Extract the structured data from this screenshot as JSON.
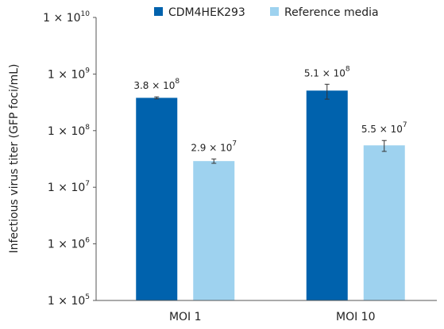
{
  "chart_data": {
    "type": "bar",
    "ylabel": "Infectious virus titer (GFP foci/mL)",
    "yscale": "log",
    "ylim": [
      100000,
      10000000000
    ],
    "yticks": [
      {
        "mantissa": "1",
        "exp": "5"
      },
      {
        "mantissa": "1",
        "exp": "6"
      },
      {
        "mantissa": "1",
        "exp": "7"
      },
      {
        "mantissa": "1",
        "exp": "8"
      },
      {
        "mantissa": "1",
        "exp": "9"
      },
      {
        "mantissa": "1",
        "exp": "10"
      }
    ],
    "categories": [
      "MOI 1",
      "MOI 10"
    ],
    "series": [
      {
        "name": "CDM4HEK293",
        "color": "#0062ad",
        "values": [
          380000000,
          510000000
        ],
        "errors": [
          15000000,
          150000000
        ],
        "labels": [
          {
            "mantissa": "3.8",
            "exp": "8"
          },
          {
            "mantissa": "5.1",
            "exp": "8"
          }
        ]
      },
      {
        "name": "Reference media",
        "color": "#9ed2ef",
        "values": [
          29000000,
          55000000
        ],
        "errors": [
          2500000,
          12000000
        ],
        "labels": [
          {
            "mantissa": "2.9",
            "exp": "7"
          },
          {
            "mantissa": "5.5",
            "exp": "7"
          }
        ]
      }
    ],
    "grid": false,
    "legend_position": "top"
  }
}
